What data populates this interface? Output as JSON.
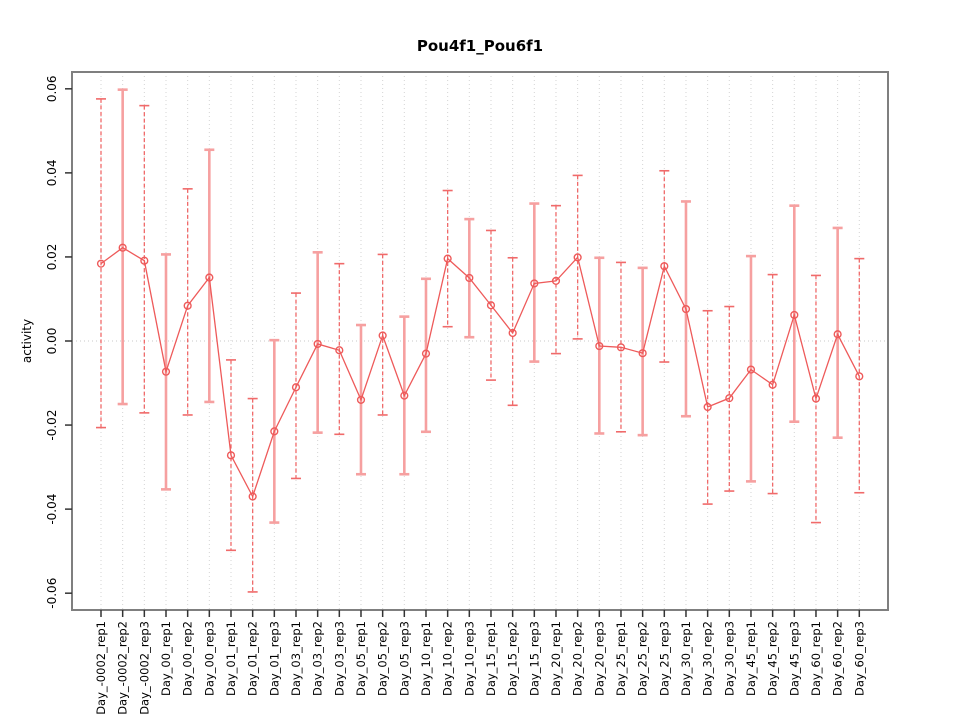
{
  "chart_data": {
    "type": "line",
    "title": "Pou4f1_Pou6f1",
    "xlabel": "",
    "ylabel": "activity",
    "ylim": [
      -0.064,
      0.064
    ],
    "y_ticks": [
      0.06,
      0.04,
      0.02,
      0.0,
      -0.02,
      -0.04,
      -0.06
    ],
    "y_tick_labels": [
      "0.06",
      "0.04",
      "0.02",
      "0.00",
      "-0.02",
      "-0.04",
      "-0.06"
    ],
    "grid": "vertical-dotted-per-category-plus-zero-line",
    "legend": "none",
    "categories": [
      "Day_-0002_rep1",
      "Day_-0002_rep2",
      "Day_-0002_rep3",
      "Day_00_rep1",
      "Day_00_rep2",
      "Day_00_rep3",
      "Day_01_rep1",
      "Day_01_rep2",
      "Day_01_rep3",
      "Day_03_rep1",
      "Day_03_rep2",
      "Day_03_rep3",
      "Day_05_rep1",
      "Day_05_rep2",
      "Day_05_rep3",
      "Day_10_rep1",
      "Day_10_rep2",
      "Day_10_rep3",
      "Day_15_rep1",
      "Day_15_rep2",
      "Day_15_rep3",
      "Day_20_rep1",
      "Day_20_rep2",
      "Day_20_rep3",
      "Day_25_rep1",
      "Day_25_rep2",
      "Day_25_rep3",
      "Day_30_rep1",
      "Day_30_rep2",
      "Day_30_rep3",
      "Day_45_rep1",
      "Day_45_rep2",
      "Day_45_rep3",
      "Day_60_rep1",
      "Day_60_rep2",
      "Day_60_rep3"
    ],
    "series": [
      {
        "name": "activity",
        "marker": "open-circle",
        "values": [
          0.0184,
          0.0222,
          0.0191,
          -0.0073,
          0.0084,
          0.0151,
          -0.0272,
          -0.037,
          -0.0215,
          -0.011,
          -0.0007,
          -0.0022,
          -0.014,
          0.0013,
          -0.013,
          -0.003,
          0.0196,
          0.015,
          0.0085,
          0.0019,
          0.0137,
          0.0143,
          0.0199,
          -0.0012,
          -0.0015,
          -0.0029,
          0.0178,
          0.0076,
          -0.0157,
          -0.0136,
          -0.0068,
          -0.0104,
          0.0062,
          -0.0137,
          0.0016,
          -0.0084
        ],
        "error_lower": [
          -0.0206,
          -0.015,
          -0.0171,
          -0.0353,
          -0.0176,
          -0.0145,
          -0.0498,
          -0.0597,
          -0.0432,
          -0.0327,
          -0.0218,
          -0.0222,
          -0.0317,
          -0.0176,
          -0.0317,
          -0.0216,
          0.0034,
          0.0009,
          -0.0093,
          -0.0153,
          -0.0049,
          -0.003,
          0.0005,
          -0.022,
          -0.0216,
          -0.0224,
          -0.005,
          -0.0179,
          -0.0388,
          -0.0357,
          -0.0334,
          -0.0363,
          -0.0192,
          -0.0432,
          -0.023,
          -0.0361
        ],
        "error_upper": [
          0.0576,
          0.0598,
          0.056,
          0.0206,
          0.0362,
          0.0455,
          -0.0045,
          -0.0137,
          0.0002,
          0.0114,
          0.0211,
          0.0184,
          0.0038,
          0.0206,
          0.0058,
          0.0148,
          0.0358,
          0.029,
          0.0263,
          0.0198,
          0.0327,
          0.0322,
          0.0394,
          0.0198,
          0.0187,
          0.0174,
          0.0405,
          0.0332,
          0.0072,
          0.0082,
          0.0202,
          0.0158,
          0.0322,
          0.0156,
          0.0269,
          0.0196
        ],
        "bar_styles": [
          "dashed",
          "solid",
          "dashed",
          "solid",
          "dashed",
          "solid",
          "dashed",
          "dashed",
          "solid",
          "dashed",
          "solid",
          "dashed",
          "solid",
          "dashed",
          "solid",
          "solid",
          "dashed",
          "solid",
          "dashed",
          "dashed",
          "solid",
          "dashed",
          "dashed",
          "solid",
          "dashed",
          "solid",
          "dashed",
          "solid",
          "dashed",
          "dashed",
          "solid",
          "dashed",
          "solid",
          "dashed",
          "solid",
          "dashed"
        ]
      }
    ],
    "colors": {
      "point_line": "#ee5a5a",
      "bar_dashed": "#f06a6a",
      "bar_solid": "#f6a0a0",
      "gridline": "#d4d4d4",
      "zero_line": "#c8c8c8",
      "plot_border": "#7f7f7f",
      "tick": "#333333",
      "text": "#000000",
      "background": "#ffffff"
    }
  }
}
